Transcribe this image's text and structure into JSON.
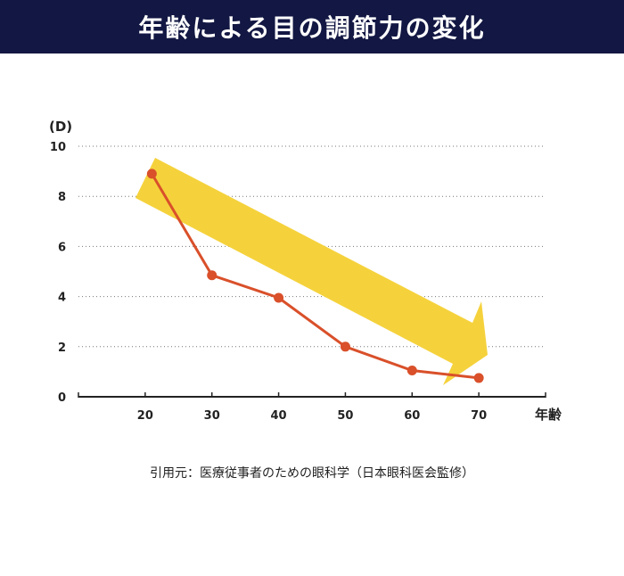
{
  "header": {
    "title": "年齢による目の調節力の変化"
  },
  "source_note": "引用元：医療従事者のための眼科学（日本眼科医会監修）",
  "colors": {
    "header_bg": "#121743",
    "line": "#d9502a",
    "arrow": "#f5d23c"
  },
  "chart_data": {
    "type": "line",
    "title": "",
    "xlabel": "年齢",
    "ylabel": "(D)",
    "x": [
      21,
      30,
      40,
      50,
      60,
      70
    ],
    "xticks": [
      "20",
      "30",
      "40",
      "50",
      "60",
      "70"
    ],
    "ylim": [
      0,
      10
    ],
    "yticks": [
      "0",
      "2",
      "4",
      "6",
      "8",
      "10"
    ],
    "series": [
      {
        "values": [
          8.9,
          4.85,
          3.95,
          2.0,
          1.05,
          0.75
        ]
      }
    ],
    "grid": true
  }
}
